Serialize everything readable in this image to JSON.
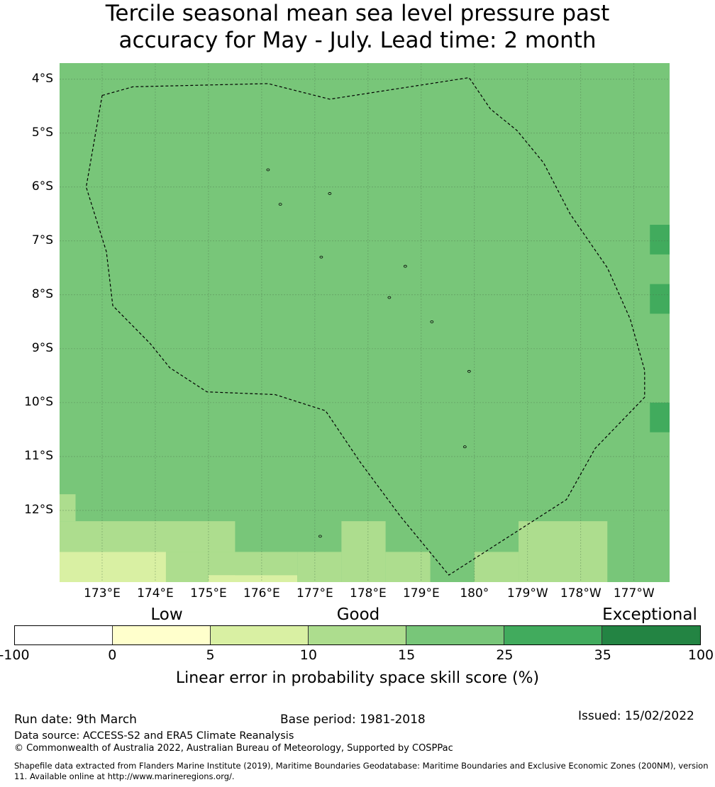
{
  "title": {
    "line1": "Tercile seasonal mean sea level pressure past",
    "line2": "accuracy for May - July. Lead time: 2 month"
  },
  "map": {
    "lat_labels": [
      "4°S",
      "5°S",
      "6°S",
      "7°S",
      "8°S",
      "9°S",
      "10°S",
      "11°S",
      "12°S"
    ],
    "lat_values": [
      -4,
      -5,
      -6,
      -7,
      -8,
      -9,
      -10,
      -11,
      -12
    ],
    "lon_labels": [
      "173°E",
      "174°E",
      "175°E",
      "176°E",
      "177°E",
      "178°E",
      "179°E",
      "180°",
      "179°W",
      "178°W",
      "177°W"
    ],
    "lon_values": [
      173,
      174,
      175,
      176,
      177,
      178,
      179,
      180,
      181,
      182,
      183
    ],
    "extent": {
      "lon_min": 172.2,
      "lon_max": 183.67,
      "lat_min": -13.33,
      "lat_max": -3.7
    },
    "base_fill_category": "15-25",
    "grid_cells": [
      {
        "lon0": 182.0,
        "lon1": 183.67,
        "lat0": -12.2,
        "lat1": -13.33,
        "category": "15-25"
      },
      {
        "lon0": 183.3,
        "lon1": 183.67,
        "lat0": -6.7,
        "lat1": -7.25,
        "category": "25-35"
      },
      {
        "lon0": 183.3,
        "lon1": 183.67,
        "lat0": -7.8,
        "lat1": -8.35,
        "category": "25-35"
      },
      {
        "lon0": 183.3,
        "lon1": 183.67,
        "lat0": -10.0,
        "lat1": -10.55,
        "category": "25-35"
      },
      {
        "lon0": 172.2,
        "lon1": 172.5,
        "lat0": -11.7,
        "lat1": -12.2,
        "category": "10-15"
      },
      {
        "lon0": 172.2,
        "lon1": 175.5,
        "lat0": -12.2,
        "lat1": -12.77,
        "category": "10-15"
      },
      {
        "lon0": 175.0,
        "lon1": 175.5,
        "lat0": -12.77,
        "lat1": -13.33,
        "category": "10-15"
      },
      {
        "lon0": 172.2,
        "lon1": 174.2,
        "lat0": -12.77,
        "lat1": -13.33,
        "category": "5-10"
      },
      {
        "lon0": 174.2,
        "lon1": 175.0,
        "lat0": -12.77,
        "lat1": -13.33,
        "category": "10-15"
      },
      {
        "lon0": 175.0,
        "lon1": 176.67,
        "lat0": -13.2,
        "lat1": -13.33,
        "category": "5-10"
      },
      {
        "lon0": 175.0,
        "lon1": 176.67,
        "lat0": -12.77,
        "lat1": -13.2,
        "category": "10-15"
      },
      {
        "lon0": 176.67,
        "lon1": 177.5,
        "lat0": -12.77,
        "lat1": -13.33,
        "category": "10-15"
      },
      {
        "lon0": 177.5,
        "lon1": 178.33,
        "lat0": -12.2,
        "lat1": -13.33,
        "category": "10-15"
      },
      {
        "lon0": 178.33,
        "lon1": 179.17,
        "lat0": -12.77,
        "lat1": -13.33,
        "category": "10-15"
      },
      {
        "lon0": 180.0,
        "lon1": 180.83,
        "lat0": -12.77,
        "lat1": -13.33,
        "category": "10-15"
      },
      {
        "lon0": 180.83,
        "lon1": 182.5,
        "lat0": -12.2,
        "lat1": -13.33,
        "category": "10-15"
      }
    ],
    "eez_boundary": [
      [
        173.0,
        -4.3
      ],
      [
        173.58,
        -4.14
      ],
      [
        176.12,
        -4.08
      ],
      [
        177.28,
        -4.37
      ],
      [
        179.9,
        -3.97
      ],
      [
        180.3,
        -4.55
      ],
      [
        180.8,
        -4.95
      ],
      [
        181.3,
        -5.55
      ],
      [
        181.8,
        -6.5
      ],
      [
        182.5,
        -7.5
      ],
      [
        182.93,
        -8.45
      ],
      [
        183.2,
        -9.4
      ],
      [
        183.2,
        -9.9
      ],
      [
        182.27,
        -10.85
      ],
      [
        181.73,
        -11.8
      ],
      [
        179.52,
        -13.2
      ],
      [
        178.6,
        -12.1
      ],
      [
        177.85,
        -11.1
      ],
      [
        177.2,
        -10.15
      ],
      [
        176.25,
        -9.85
      ],
      [
        174.97,
        -9.8
      ],
      [
        174.27,
        -9.35
      ],
      [
        173.9,
        -8.9
      ],
      [
        173.2,
        -8.2
      ],
      [
        173.08,
        -7.2
      ],
      [
        172.7,
        -6.0
      ],
      [
        173.0,
        -4.3
      ]
    ],
    "islands": [
      [
        176.12,
        -5.68
      ],
      [
        176.35,
        -6.32
      ],
      [
        177.28,
        -6.12
      ],
      [
        177.12,
        -7.3
      ],
      [
        178.7,
        -7.47
      ],
      [
        178.4,
        -8.05
      ],
      [
        179.2,
        -8.5
      ],
      [
        179.9,
        -9.42
      ],
      [
        179.82,
        -10.82
      ],
      [
        177.1,
        -12.48
      ]
    ]
  },
  "colorbar": {
    "boundaries": [
      -100,
      0,
      5,
      10,
      15,
      25,
      35,
      100
    ],
    "tick_labels": [
      "-100",
      "0",
      "5",
      "10",
      "15",
      "25",
      "35",
      "100"
    ],
    "colors": [
      "#ffffff",
      "#ffffcc",
      "#d9f0a3",
      "#addd8e",
      "#78c679",
      "#41ab5d",
      "#238443"
    ],
    "category_labels": [
      "Low",
      "Good",
      "Exceptional"
    ],
    "label": "Linear error in probability space skill score (%)"
  },
  "category_colors": {
    "5-10": "#d9f0a3",
    "10-15": "#addd8e",
    "15-25": "#78c679",
    "25-35": "#41ab5d"
  },
  "footer": {
    "run_date": "Run date: 9th March",
    "base_period": "Base period: 1981-2018",
    "issued": "Issued: 15/02/2022",
    "data_source": "Data source: ACCESS-S2 and ERA5 Climate Reanalysis",
    "copyright": "© Commonwealth of Australia 2022, Australian Bureau of Meteorology, Supported by COSPPac",
    "shapefile": "Shapefile data extracted from Flanders Marine Institute (2019), Maritime Boundaries Geodatabase: Maritime Boundaries and Exclusive Economic Zones (200NM), version 11. Available online at http://www.marineregions.org/."
  }
}
